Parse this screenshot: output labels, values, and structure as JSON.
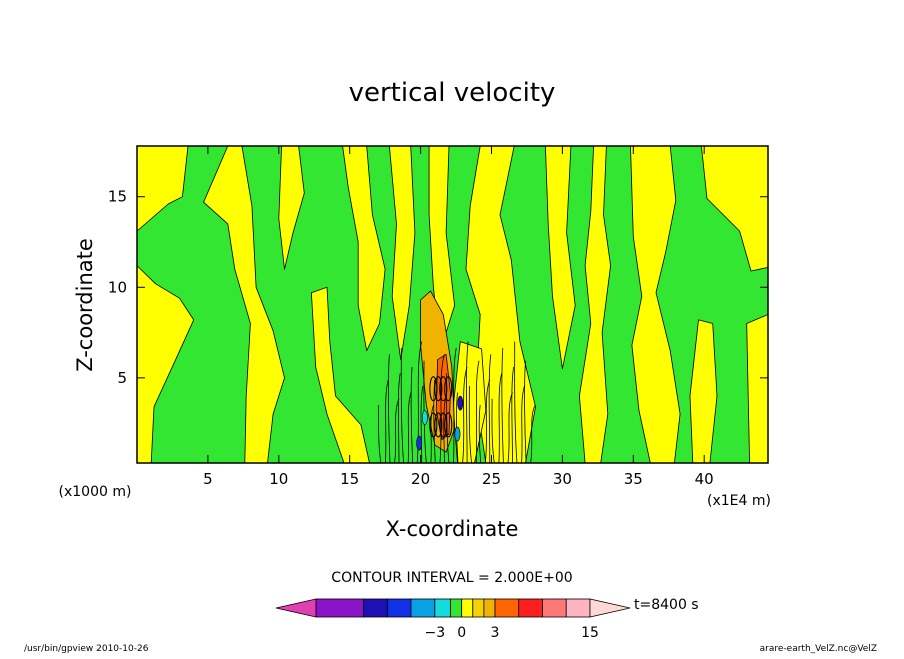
{
  "chart_data": {
    "type": "heatmap",
    "title": "vertical velocity",
    "xlabel": "X-coordinate",
    "ylabel": "Z-coordinate",
    "x_units_left": "(x1000 m)",
    "x_units_right": "(x1E4 m)",
    "xlim": [
      0,
      44.5
    ],
    "ylim": [
      0.3,
      17.8
    ],
    "x_ticks": [
      5,
      10,
      15,
      20,
      25,
      30,
      35,
      40
    ],
    "y_ticks": [
      5,
      10,
      15
    ],
    "contour_interval_label": "CONTOUR INTERVAL = 2.000E+00",
    "time_label": "t=8400 s",
    "colorbar": {
      "tick_labels": [
        {
          "value": -3,
          "label": "−3"
        },
        {
          "value": 0,
          "label": "0"
        },
        {
          "value": 3,
          "label": "3"
        },
        {
          "value": 15,
          "label": "15"
        }
      ],
      "bins": [
        {
          "from": null,
          "to": -18,
          "color": "#e040b0"
        },
        {
          "from": -18,
          "to": -12,
          "color": "#8a14c8"
        },
        {
          "from": -12,
          "to": -9,
          "color": "#1e10b4"
        },
        {
          "from": -9,
          "to": -6,
          "color": "#1230e6"
        },
        {
          "from": -6,
          "to": -3,
          "color": "#0aa0e6"
        },
        {
          "from": -3,
          "to": -1,
          "color": "#14dcdc"
        },
        {
          "from": -1,
          "to": 0,
          "color": "#32e632"
        },
        {
          "from": 0,
          "to": 1,
          "color": "#ffff00"
        },
        {
          "from": 1,
          "to": 2,
          "color": "#f5d200"
        },
        {
          "from": 2,
          "to": 3,
          "color": "#f0b400"
        },
        {
          "from": 3,
          "to": 6,
          "color": "#ff6400"
        },
        {
          "from": 6,
          "to": 9,
          "color": "#ff1e1e"
        },
        {
          "from": 9,
          "to": 12,
          "color": "#ff7878"
        },
        {
          "from": 12,
          "to": 15,
          "color": "#ffb4c0"
        },
        {
          "from": 15,
          "to": null,
          "color": "#ffd8d8"
        }
      ]
    },
    "field_colors": {
      "updraft": "#ffff00",
      "downdraft": "#32e632",
      "strong_updraft": "#f0b400",
      "core": "#ff6400",
      "contour_line": "#000000"
    }
  },
  "footer": {
    "left": "/usr/bin/gpview   2010-10-26",
    "right": "arare-earth_VelZ.nc@VelZ"
  }
}
